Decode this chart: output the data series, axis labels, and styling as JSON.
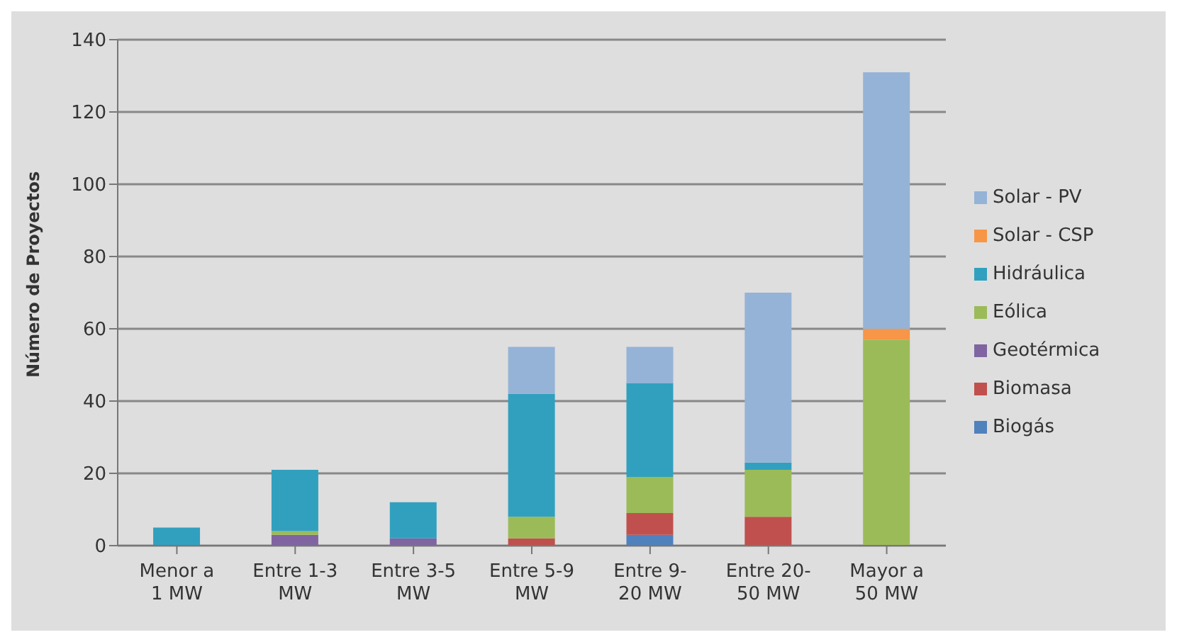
{
  "chart_data": {
    "type": "bar",
    "stacked": true,
    "ylabel": "Número de Proyectos",
    "categories": [
      "Menor a\n1 MW",
      "Entre 1-3\nMW",
      "Entre 3-5\nMW",
      "Entre 5-9\nMW",
      "Entre 9-\n20 MW",
      "Entre 20-\n50 MW",
      "Mayor a\n50 MW"
    ],
    "series": [
      {
        "name": "Biogás",
        "color": "#4f81bd",
        "values": [
          0,
          0,
          0,
          0,
          3,
          0,
          0
        ]
      },
      {
        "name": "Biomasa",
        "color": "#c0504d",
        "values": [
          0,
          0,
          0,
          2,
          6,
          8,
          0
        ]
      },
      {
        "name": "Geotérmica",
        "color": "#8064a2",
        "values": [
          0,
          3,
          2,
          0,
          0,
          0,
          0
        ]
      },
      {
        "name": "Eólica",
        "color": "#9bbb59",
        "values": [
          0,
          1,
          0,
          6,
          10,
          13,
          57
        ]
      },
      {
        "name": "Hidráulica",
        "color": "#31a0bf",
        "values": [
          5,
          17,
          10,
          34,
          26,
          2,
          0
        ]
      },
      {
        "name": "Solar - CSP",
        "color": "#f79646",
        "values": [
          0,
          0,
          0,
          0,
          0,
          0,
          3
        ]
      },
      {
        "name": "Solar - PV",
        "color": "#95b3d7",
        "values": [
          0,
          0,
          0,
          13,
          10,
          47,
          71
        ]
      }
    ],
    "ylim": [
      0,
      140
    ],
    "yticks": [
      0,
      20,
      40,
      60,
      80,
      100,
      120,
      140
    ],
    "grid": "y",
    "legend": "right"
  }
}
